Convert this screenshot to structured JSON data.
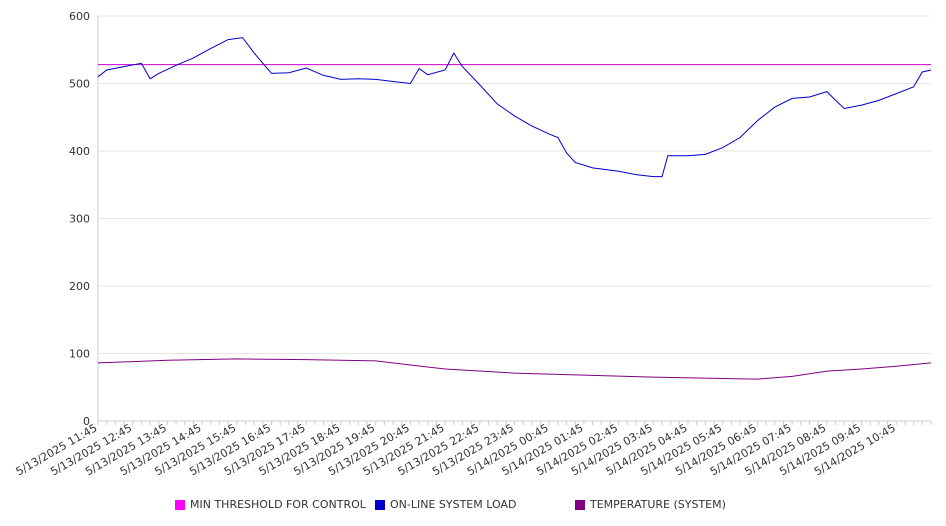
{
  "chart_data": {
    "type": "line",
    "ylim": [
      0,
      600
    ],
    "y_ticks": [
      0,
      100,
      200,
      300,
      400,
      500,
      600
    ],
    "grid": true,
    "legend_position": "bottom",
    "x_tick_labels": [
      "5/13/2025 11:45",
      "5/13/2025 12:45",
      "5/13/2025 13:45",
      "5/13/2025 14:45",
      "5/13/2025 15:45",
      "5/13/2025 16:45",
      "5/13/2025 17:45",
      "5/13/2025 18:45",
      "5/13/2025 19:45",
      "5/13/2025 20:45",
      "5/13/2025 21:45",
      "5/13/2025 22:45",
      "5/13/2025 23:45",
      "5/14/2025 00:45",
      "5/14/2025 01:45",
      "5/14/2025 02:45",
      "5/14/2025 03:45",
      "5/14/2025 04:45",
      "5/14/2025 05:45",
      "5/14/2025 06:45",
      "5/14/2025 07:45",
      "5/14/2025 08:45",
      "5/14/2025 09:45",
      "5/14/2025 10:45"
    ],
    "x_start": "5/13/2025 11:45",
    "x_end": "5/14/2025 11:45",
    "series": [
      {
        "name": "MIN THRESHOLD FOR CONTROL",
        "color": "#cc00cc",
        "points": [
          [
            "5/13/2025 11:45",
            528
          ],
          [
            "5/14/2025 11:45",
            528
          ]
        ]
      },
      {
        "name": "ON-LINE SYSTEM LOAD",
        "color": "#0000cc",
        "points": [
          [
            "5/13/2025 11:45",
            510
          ],
          [
            "5/13/2025 12:00",
            520
          ],
          [
            "5/13/2025 12:30",
            525
          ],
          [
            "5/13/2025 13:00",
            530
          ],
          [
            "5/13/2025 13:15",
            507
          ],
          [
            "5/13/2025 13:30",
            515
          ],
          [
            "5/13/2025 14:00",
            527
          ],
          [
            "5/13/2025 14:30",
            538
          ],
          [
            "5/13/2025 15:00",
            552
          ],
          [
            "5/13/2025 15:30",
            565
          ],
          [
            "5/13/2025 15:55",
            568
          ],
          [
            "5/13/2025 16:15",
            545
          ],
          [
            "5/13/2025 16:45",
            515
          ],
          [
            "5/13/2025 17:15",
            516
          ],
          [
            "5/13/2025 17:45",
            523
          ],
          [
            "5/13/2025 18:15",
            512
          ],
          [
            "5/13/2025 18:45",
            506
          ],
          [
            "5/13/2025 19:15",
            507
          ],
          [
            "5/13/2025 19:45",
            506
          ],
          [
            "5/13/2025 20:15",
            503
          ],
          [
            "5/13/2025 20:45",
            500
          ],
          [
            "5/13/2025 21:00",
            522
          ],
          [
            "5/13/2025 21:15",
            513
          ],
          [
            "5/13/2025 21:45",
            520
          ],
          [
            "5/13/2025 22:00",
            545
          ],
          [
            "5/13/2025 22:15",
            525
          ],
          [
            "5/13/2025 22:45",
            498
          ],
          [
            "5/13/2025 23:15",
            470
          ],
          [
            "5/13/2025 23:45",
            452
          ],
          [
            "5/14/2025 00:15",
            437
          ],
          [
            "5/14/2025 00:45",
            425
          ],
          [
            "5/14/2025 01:00",
            420
          ],
          [
            "5/14/2025 01:15",
            397
          ],
          [
            "5/14/2025 01:30",
            383
          ],
          [
            "5/14/2025 02:00",
            375
          ],
          [
            "5/14/2025 02:45",
            370
          ],
          [
            "5/14/2025 03:15",
            365
          ],
          [
            "5/14/2025 03:45",
            362
          ],
          [
            "5/14/2025 04:00",
            362
          ],
          [
            "5/14/2025 04:10",
            393
          ],
          [
            "5/14/2025 04:45",
            393
          ],
          [
            "5/14/2025 05:15",
            395
          ],
          [
            "5/14/2025 05:45",
            405
          ],
          [
            "5/14/2025 06:15",
            420
          ],
          [
            "5/14/2025 06:45",
            445
          ],
          [
            "5/14/2025 07:15",
            465
          ],
          [
            "5/14/2025 07:45",
            478
          ],
          [
            "5/14/2025 08:15",
            480
          ],
          [
            "5/14/2025 08:45",
            488
          ],
          [
            "5/14/2025 09:00",
            475
          ],
          [
            "5/14/2025 09:15",
            463
          ],
          [
            "5/14/2025 09:45",
            468
          ],
          [
            "5/14/2025 10:15",
            475
          ],
          [
            "5/14/2025 10:45",
            485
          ],
          [
            "5/14/2025 11:15",
            495
          ],
          [
            "5/14/2025 11:30",
            517
          ],
          [
            "5/14/2025 11:45",
            520
          ]
        ]
      },
      {
        "name": "TEMPERATURE (SYSTEM)",
        "color": "#800080",
        "points": [
          [
            "5/13/2025 11:45",
            86
          ],
          [
            "5/13/2025 13:45",
            90
          ],
          [
            "5/13/2025 15:45",
            92
          ],
          [
            "5/13/2025 17:45",
            91
          ],
          [
            "5/13/2025 19:45",
            89
          ],
          [
            "5/13/2025 20:45",
            83
          ],
          [
            "5/13/2025 21:45",
            77
          ],
          [
            "5/13/2025 23:45",
            71
          ],
          [
            "5/14/2025 01:45",
            68
          ],
          [
            "5/14/2025 03:45",
            65
          ],
          [
            "5/14/2025 05:45",
            63
          ],
          [
            "5/14/2025 06:45",
            62
          ],
          [
            "5/14/2025 07:45",
            66
          ],
          [
            "5/14/2025 08:45",
            74
          ],
          [
            "5/14/2025 09:45",
            77
          ],
          [
            "5/14/2025 10:45",
            81
          ],
          [
            "5/14/2025 11:45",
            86
          ]
        ]
      }
    ]
  }
}
